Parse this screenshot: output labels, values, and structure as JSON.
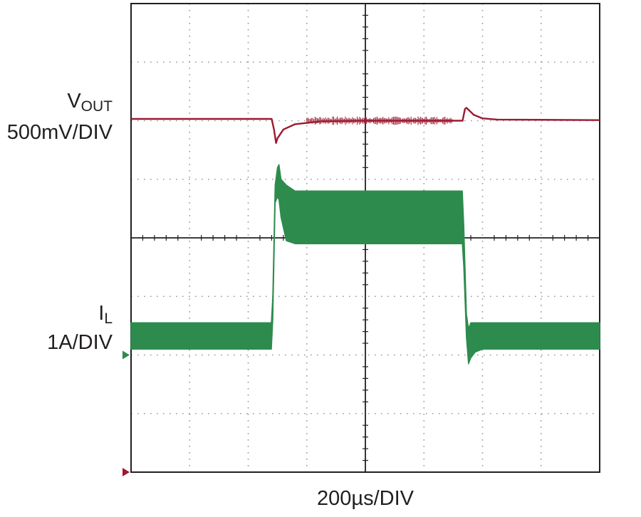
{
  "chart_data": {
    "type": "line",
    "x_divisions": 8,
    "y_divisions": 8,
    "grid": true,
    "x_scale_label": "200µs/DIV",
    "x_unit": "µs",
    "x_range": [
      0,
      1600
    ],
    "series": [
      {
        "name": "VOUT",
        "label_main": "V",
        "label_sub": "OUT",
        "scale_label": "500mV/DIV",
        "color": "#9b1b30",
        "ground_marker_div": 0,
        "x": [
          0,
          480,
          488,
          495,
          500,
          520,
          560,
          650,
          800,
          1100,
          1132,
          1140,
          1145,
          1170,
          1200,
          1250,
          1600
        ],
        "y": [
          6.03,
          6.03,
          5.85,
          5.62,
          5.7,
          5.85,
          5.94,
          5.99,
          6.0,
          6.0,
          6.0,
          6.2,
          6.22,
          6.1,
          6.04,
          6.02,
          6.01
        ]
      },
      {
        "name": "IL",
        "label_main": "I",
        "label_sub": "L",
        "scale_label": "1A/DIV",
        "color": "#2e8b4e",
        "ground_marker_div": 2.0,
        "envelope": {
          "x": [
            0,
            479,
            484,
            492,
            500,
            505,
            512,
            530,
            560,
            650,
            800,
            1131,
            1136,
            1145,
            1152,
            1160,
            1175,
            1200,
            1300,
            1600
          ],
          "low": [
            2.1,
            2.1,
            2.6,
            4.6,
            4.7,
            4.65,
            4.35,
            3.95,
            3.9,
            3.9,
            3.9,
            3.9,
            3.5,
            2.3,
            1.85,
            1.95,
            2.05,
            2.1,
            2.1,
            2.1
          ],
          "high": [
            2.55,
            2.55,
            3.0,
            4.9,
            5.2,
            5.25,
            5.0,
            4.9,
            4.8,
            4.8,
            4.8,
            4.8,
            4.2,
            2.7,
            2.45,
            2.55,
            2.55,
            2.55,
            2.55,
            2.55
          ]
        }
      }
    ]
  }
}
